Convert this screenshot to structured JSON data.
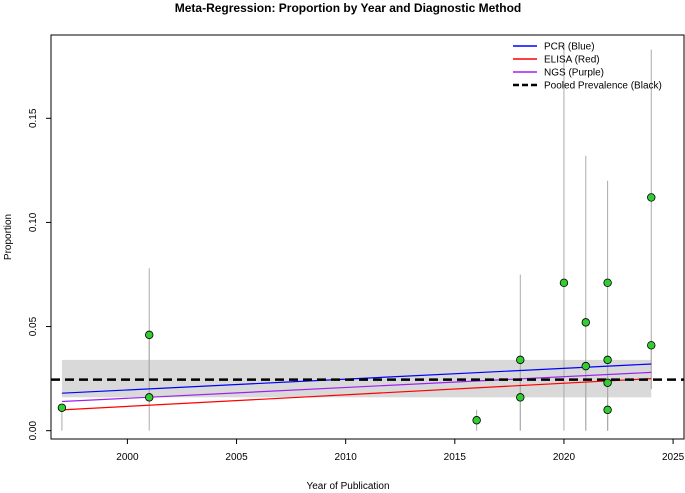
{
  "chart_data": {
    "type": "scatter",
    "title": "Meta-Regression: Proportion by Year and Diagnostic Method",
    "xlabel": "Year of Publication",
    "ylabel": "Proportion",
    "xlim": [
      1996.5,
      2025.5
    ],
    "ylim": [
      -0.004,
      0.19
    ],
    "x_ticks": [
      2000,
      2005,
      2010,
      2015,
      2020,
      2025
    ],
    "y_ticks": [
      0.0,
      0.05,
      0.1,
      0.15
    ],
    "y_tick_labels": [
      "0.00",
      "0.05",
      "0.10",
      "0.15"
    ],
    "legend_position": "top-right",
    "points": [
      {
        "x": 1997,
        "y": 0.011,
        "ci": [
          0.0,
          0.012
        ]
      },
      {
        "x": 2001,
        "y": 0.046,
        "ci": [
          0.02,
          0.046
        ]
      },
      {
        "x": 2001,
        "y": 0.016,
        "ci": [
          0.0,
          0.078
        ]
      },
      {
        "x": 2016,
        "y": 0.005,
        "ci": [
          0.0,
          0.01
        ]
      },
      {
        "x": 2018,
        "y": 0.034,
        "ci": [
          0.0,
          0.075
        ]
      },
      {
        "x": 2018,
        "y": 0.016,
        "ci": [
          0.0,
          0.03
        ]
      },
      {
        "x": 2020,
        "y": 0.071,
        "ci": [
          0.0,
          0.185
        ]
      },
      {
        "x": 2021,
        "y": 0.052,
        "ci": [
          0.0,
          0.132
        ]
      },
      {
        "x": 2021,
        "y": 0.031,
        "ci": [
          0.0,
          0.031
        ]
      },
      {
        "x": 2022,
        "y": 0.071,
        "ci": [
          0.0,
          0.12
        ]
      },
      {
        "x": 2022,
        "y": 0.034,
        "ci": [
          0.0,
          0.034
        ]
      },
      {
        "x": 2022,
        "y": 0.023,
        "ci": [
          0.0,
          0.023
        ]
      },
      {
        "x": 2022,
        "y": 0.01,
        "ci": [
          0.0,
          0.01
        ]
      },
      {
        "x": 2024,
        "y": 0.112,
        "ci": [
          0.02,
          0.183
        ]
      },
      {
        "x": 2024,
        "y": 0.041,
        "ci": [
          0.02,
          0.041
        ]
      }
    ],
    "band": {
      "x": [
        1997,
        2024
      ],
      "lower": 0.016,
      "upper": 0.034
    },
    "series": [
      {
        "name": "PCR (Blue)",
        "color": "#0000ff",
        "style": "solid",
        "x": [
          1997,
          2024
        ],
        "y": [
          0.018,
          0.032
        ]
      },
      {
        "name": "ELISA (Red)",
        "color": "#ff0000",
        "style": "solid",
        "x": [
          1997,
          2024
        ],
        "y": [
          0.01,
          0.025
        ]
      },
      {
        "name": "NGS (Purple)",
        "color": "#a020f0",
        "style": "solid",
        "x": [
          1997,
          2024
        ],
        "y": [
          0.014,
          0.028
        ]
      },
      {
        "name": "Pooled Prevalence (Black)",
        "color": "#000000",
        "style": "dashed",
        "x": [
          1996.5,
          2025.5
        ],
        "y": [
          0.0245,
          0.0245
        ]
      }
    ],
    "colors": {
      "point_fill": "#33cc33",
      "point_stroke": "#000000",
      "ci_line": "#aaaaaa",
      "band": "#d9d9d9"
    }
  }
}
